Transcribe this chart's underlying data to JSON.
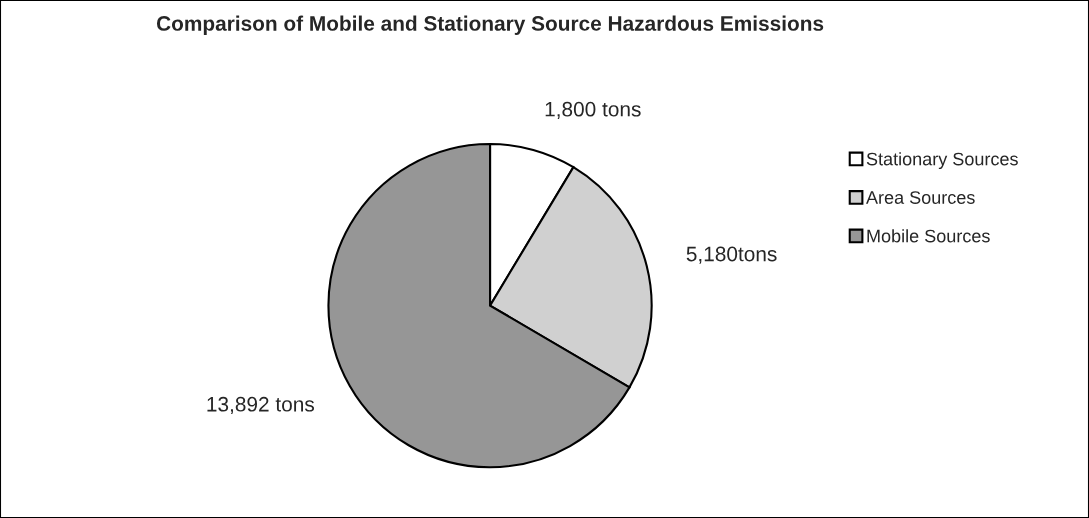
{
  "chart_data": {
    "type": "pie",
    "title": "Comparison of Mobile and Stationary Source Hazardous Emissions",
    "categories": [
      "Stationary Sources",
      "Area Sources",
      "Mobile Sources"
    ],
    "values": [
      1800,
      5180,
      13892
    ],
    "value_labels": [
      "1,800 tons",
      "5,180tons",
      "13,892 tons"
    ],
    "colors": [
      "#ffffff",
      "#d0d0d0",
      "#969696"
    ],
    "legend": "right"
  }
}
